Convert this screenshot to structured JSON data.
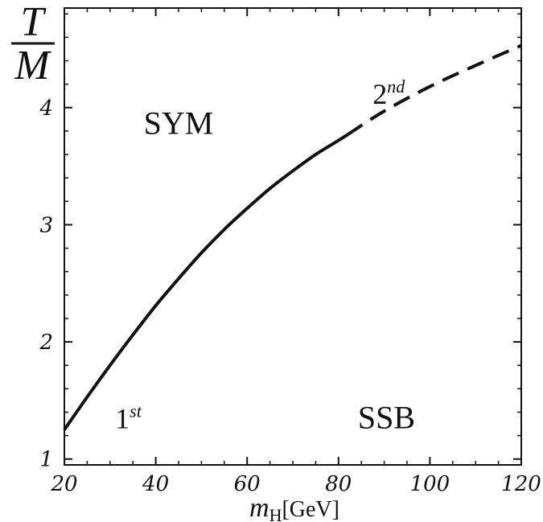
{
  "chart_data": {
    "type": "line",
    "xlim": [
      20,
      120
    ],
    "ylim": [
      0.95,
      4.85
    ],
    "xticks": [
      20,
      40,
      60,
      80,
      100,
      120
    ],
    "yticks": [
      1,
      2,
      3,
      4
    ],
    "xtick_labels": [
      "20",
      "40",
      "60",
      "80",
      "100",
      "120"
    ],
    "ytick_labels": [
      "1",
      "2",
      "3",
      "4"
    ],
    "ylabel": {
      "num": "T",
      "den": "M"
    },
    "xlabel": {
      "symbol": "m",
      "sub": "H",
      "unit": "[GeV]"
    },
    "grid": false,
    "series": [
      {
        "style": "solid",
        "x": [
          20,
          25,
          30,
          35,
          40,
          45,
          50,
          55,
          60,
          65,
          70,
          75,
          80,
          82
        ],
        "y": [
          1.25,
          1.53,
          1.8,
          2.06,
          2.31,
          2.54,
          2.76,
          2.96,
          3.14,
          3.31,
          3.46,
          3.6,
          3.72,
          3.77
        ]
      },
      {
        "style": "dashed",
        "x": [
          82,
          90,
          100,
          110,
          120
        ],
        "y": [
          3.77,
          3.97,
          4.18,
          4.36,
          4.53
        ]
      }
    ],
    "annotations": [
      {
        "text": "SYM",
        "x": 45,
        "y": 3.87
      },
      {
        "text": "SSB",
        "x": 90.5,
        "y": 1.36
      },
      {
        "text": "1",
        "sup": "st",
        "x": 34,
        "y": 1.36
      },
      {
        "text": "2",
        "sup": "nd",
        "x": 91,
        "y": 4.13
      }
    ]
  }
}
